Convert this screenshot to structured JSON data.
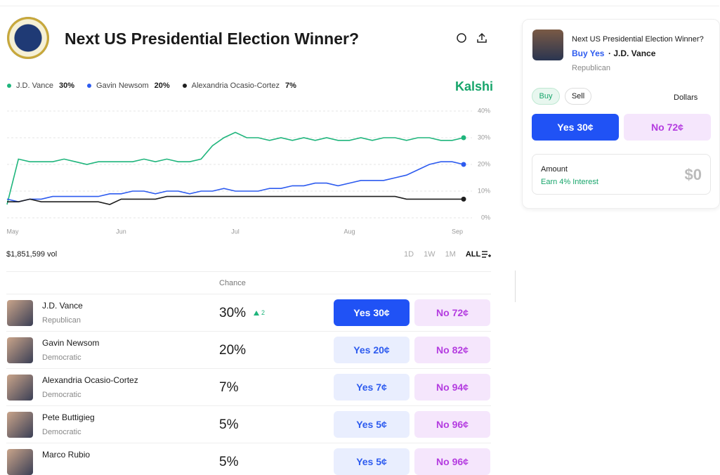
{
  "header": {
    "title": "Next US Presidential Election Winner?",
    "brand": "Kalshi"
  },
  "chart_data": {
    "type": "line",
    "categories": [
      "May",
      null,
      null,
      null,
      null,
      null,
      null,
      null,
      null,
      null,
      "Jun",
      null,
      null,
      null,
      null,
      null,
      null,
      null,
      null,
      null,
      "Jul",
      null,
      null,
      null,
      null,
      null,
      null,
      null,
      null,
      null,
      "Aug",
      null,
      null,
      null,
      null,
      null,
      null,
      null,
      null,
      null,
      "Sep"
    ],
    "series": [
      {
        "name": "J.D. Vance",
        "last_label": "30%",
        "color": "#1fb57c",
        "values": [
          5,
          22,
          21,
          21,
          21,
          22,
          21,
          20,
          21,
          21,
          21,
          21,
          22,
          21,
          22,
          21,
          21,
          22,
          27,
          30,
          32,
          30,
          30,
          29,
          30,
          29,
          30,
          29,
          30,
          29,
          29,
          30,
          29,
          30,
          30,
          29,
          30,
          30,
          29,
          29,
          30
        ]
      },
      {
        "name": "Gavin Newsom",
        "last_label": "20%",
        "color": "#2d5bef",
        "values": [
          7,
          6,
          7,
          7,
          8,
          8,
          8,
          8,
          8,
          9,
          9,
          10,
          10,
          9,
          10,
          10,
          9,
          10,
          10,
          11,
          10,
          10,
          10,
          11,
          11,
          12,
          12,
          13,
          13,
          12,
          13,
          14,
          14,
          14,
          15,
          16,
          18,
          20,
          21,
          21,
          20
        ]
      },
      {
        "name": "Alexandria Ocasio-Cortez",
        "last_label": "7%",
        "color": "#1e1e1e",
        "values": [
          6,
          6,
          7,
          6,
          6,
          6,
          6,
          6,
          6,
          5,
          7,
          7,
          7,
          7,
          8,
          8,
          8,
          8,
          8,
          8,
          8,
          8,
          8,
          8,
          8,
          8,
          8,
          8,
          8,
          8,
          8,
          8,
          8,
          8,
          8,
          7,
          7,
          7,
          7,
          7,
          7
        ]
      }
    ],
    "ylim": [
      0,
      40
    ],
    "yticks": [
      {
        "value": 0,
        "label": "0%"
      },
      {
        "value": 10,
        "label": "10%"
      },
      {
        "value": 20,
        "label": "20%"
      },
      {
        "value": 30,
        "label": "30%"
      },
      {
        "value": 40,
        "label": "40%"
      }
    ],
    "grid": true
  },
  "volume": "$1,851,599 vol",
  "ranges": [
    "1D",
    "1W",
    "1M",
    "ALL"
  ],
  "table": {
    "header": "Chance",
    "rows": [
      {
        "name": "J.D. Vance",
        "party": "Republican",
        "chance": "30%",
        "change": "2",
        "yes": "Yes 30¢",
        "no": "No 72¢"
      },
      {
        "name": "Gavin Newsom",
        "party": "Democratic",
        "chance": "20%",
        "yes": "Yes 20¢",
        "no": "No 82¢"
      },
      {
        "name": "Alexandria Ocasio-Cortez",
        "party": "Democratic",
        "chance": "7%",
        "yes": "Yes 7¢",
        "no": "No 94¢"
      },
      {
        "name": "Pete Buttigieg",
        "party": "Democratic",
        "chance": "5%",
        "yes": "Yes 5¢",
        "no": "No 96¢"
      },
      {
        "name": "Marco Rubio",
        "chance": "5%",
        "yes": "Yes 5¢",
        "no": "No 96¢"
      }
    ]
  },
  "panel": {
    "title": "Next US Presidential Election Winner?",
    "action": "Buy Yes",
    "candidate": "· J.D. Vance",
    "party": "Republican",
    "buy": "Buy",
    "sell": "Sell",
    "currency": "Dollars",
    "yes": "Yes 30¢",
    "no": "No 72¢",
    "amount_label": "Amount",
    "interest": "Earn 4% Interest",
    "amount": "$0"
  }
}
